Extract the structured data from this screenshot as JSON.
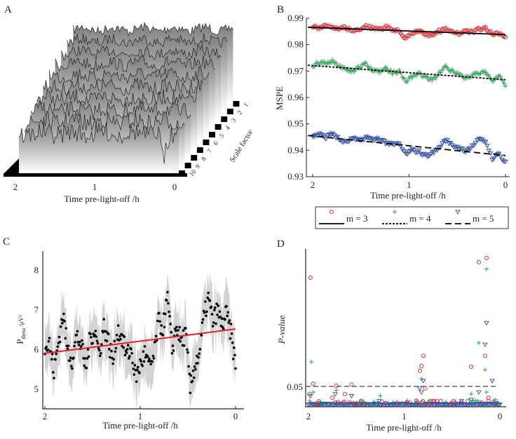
{
  "panels": {
    "A": {
      "label": "A"
    },
    "B": {
      "label": "B"
    },
    "C": {
      "label": "C"
    },
    "D": {
      "label": "D"
    }
  },
  "chart_data": [
    {
      "id": "A",
      "type": "area",
      "title": "",
      "xlabel": "Time pre-light-off /h",
      "zlabel": "Scale factor",
      "x_ticks": [
        "2",
        "1",
        "0"
      ],
      "scale_factors": [
        "1",
        "2",
        "3",
        "4",
        "5",
        "6",
        "7",
        "8",
        "9",
        "10"
      ],
      "xlim": [
        2,
        0
      ]
    },
    {
      "id": "B",
      "type": "scatter",
      "xlabel": "Time pre-light-off /h",
      "ylabel": "MSPE",
      "xlim": [
        2.05,
        -0.05
      ],
      "ylim": [
        0.93,
        0.99
      ],
      "x_ticks": [
        "2",
        "1",
        "0"
      ],
      "y_ticks": [
        "0.93",
        "0.94",
        "0.95",
        "0.96",
        "0.97",
        "0.98",
        "0.99"
      ],
      "series": [
        {
          "name": "m = 3",
          "color": "#e8202a",
          "marker": "circle",
          "line": "solid",
          "trend": [
            0.9866,
            0.9838
          ],
          "values": [
            0.9866,
            0.9862,
            0.987,
            0.9868,
            0.986,
            0.9865,
            0.9852,
            0.9858,
            0.987,
            0.9862,
            0.986,
            0.9866,
            0.9858,
            0.985,
            0.9825,
            0.9845,
            0.9848,
            0.984,
            0.9835,
            0.985,
            0.986,
            0.9845,
            0.9842,
            0.985,
            0.9848,
            0.986,
            0.9865,
            0.984,
            0.9845,
            0.983
          ]
        },
        {
          "name": "m = 4",
          "color": "#1aa84a",
          "marker": "plus",
          "line": "dotted",
          "trend": [
            0.9722,
            0.9667
          ],
          "values": [
            0.972,
            0.973,
            0.9725,
            0.9735,
            0.972,
            0.971,
            0.97,
            0.9715,
            0.9725,
            0.9705,
            0.97,
            0.971,
            0.9695,
            0.97,
            0.966,
            0.968,
            0.969,
            0.9675,
            0.9665,
            0.969,
            0.9715,
            0.97,
            0.969,
            0.9675,
            0.9685,
            0.969,
            0.97,
            0.966,
            0.9685,
            0.9645
          ]
        },
        {
          "name": "m = 5",
          "color": "#2d4fa8",
          "marker": "triangle-down",
          "line": "dashed",
          "trend": [
            0.9456,
            0.938
          ],
          "values": [
            0.9455,
            0.946,
            0.945,
            0.9465,
            0.944,
            0.943,
            0.9445,
            0.9435,
            0.945,
            0.944,
            0.9445,
            0.943,
            0.942,
            0.9425,
            0.9385,
            0.94,
            0.9395,
            0.938,
            0.939,
            0.941,
            0.944,
            0.942,
            0.941,
            0.94,
            0.9415,
            0.944,
            0.9435,
            0.937,
            0.9385,
            0.9355
          ]
        }
      ],
      "legend": "bottom"
    },
    {
      "id": "C",
      "type": "scatter",
      "xlabel": "Time pre-light-off /h",
      "ylabel_main": "P",
      "ylabel_sub": "theta",
      "ylabel_unit": " /μV²",
      "xlim": [
        2.02,
        -0.08
      ],
      "ylim": [
        4.5,
        8.5
      ],
      "x_ticks": [
        "2",
        "1",
        "0"
      ],
      "y_ticks": [
        "5",
        "6",
        "7",
        "8"
      ],
      "trend": [
        5.9,
        6.52
      ],
      "trend_color": "#e8202a",
      "values": [
        6.0,
        6.15,
        5.45,
        6.2,
        6.9,
        6.0,
        5.75,
        6.35,
        6.1,
        5.5,
        6.3,
        6.5,
        5.9,
        6.6,
        6.2,
        5.7,
        6.5,
        6.3,
        5.85,
        6.0,
        5.3,
        5.6,
        5.9,
        5.55,
        5.8,
        6.7,
        6.55,
        7.3,
        6.0,
        6.6,
        6.2,
        6.4,
        5.0,
        5.6,
        5.9,
        6.8,
        7.3,
        6.7,
        7.0,
        6.6,
        6.9,
        6.4,
        5.6
      ]
    },
    {
      "id": "D",
      "type": "scatter",
      "xlabel": "Time pre-light-off /h",
      "ylabel": "P-value",
      "xlim": [
        2.02,
        -0.05
      ],
      "ylim": [
        0,
        0.4
      ],
      "x_ticks": [
        "2",
        "1",
        "0"
      ],
      "threshold": 0.05,
      "threshold_label": "0.05",
      "series": [
        {
          "name": "m = 3",
          "color": "#e8202a",
          "marker": "circle",
          "points": [
            [
              1.98,
              0.337
            ],
            [
              1.95,
              0.057
            ],
            [
              1.71,
              0.052
            ],
            [
              1.55,
              0.055
            ],
            [
              0.835,
              0.091
            ],
            [
              0.82,
              0.104
            ],
            [
              0.8,
              0.131
            ],
            [
              0.3,
              0.102
            ],
            [
              0.22,
              0.378
            ],
            [
              0.155,
              0.131
            ],
            [
              0.14,
              0.389
            ],
            [
              1.99,
              0.03
            ],
            [
              1.75,
              0.02
            ],
            [
              1.62,
              0.03
            ],
            [
              0.78,
              0.045
            ],
            [
              0.12,
              0.02
            ]
          ]
        },
        {
          "name": "m = 4",
          "color": "#1aa84a",
          "marker": "plus",
          "points": [
            [
              1.97,
              0.115
            ],
            [
              1.95,
              0.035
            ],
            [
              1.71,
              0.04
            ],
            [
              1.25,
              0.025
            ],
            [
              0.82,
              0.07
            ],
            [
              0.3,
              0.03
            ],
            [
              0.22,
              0.165
            ],
            [
              0.155,
              0.094
            ],
            [
              0.14,
              0.36
            ],
            [
              0.14,
              0.035
            ],
            [
              0.05,
              0.015
            ]
          ]
        },
        {
          "name": "m = 5",
          "color": "#2d4fa8",
          "marker": "triangle-down",
          "points": [
            [
              1.98,
              0.025
            ],
            [
              1.72,
              0.03
            ],
            [
              1.55,
              0.025
            ],
            [
              1.26,
              0.012
            ],
            [
              0.84,
              0.045
            ],
            [
              0.8,
              0.065
            ],
            [
              0.82,
              0.035
            ],
            [
              0.4,
              0.012
            ],
            [
              0.3,
              0.015
            ],
            [
              0.22,
              0.035
            ],
            [
              0.155,
              0.161
            ],
            [
              0.14,
              0.218
            ],
            [
              0.08,
              0.065
            ]
          ]
        }
      ]
    }
  ]
}
